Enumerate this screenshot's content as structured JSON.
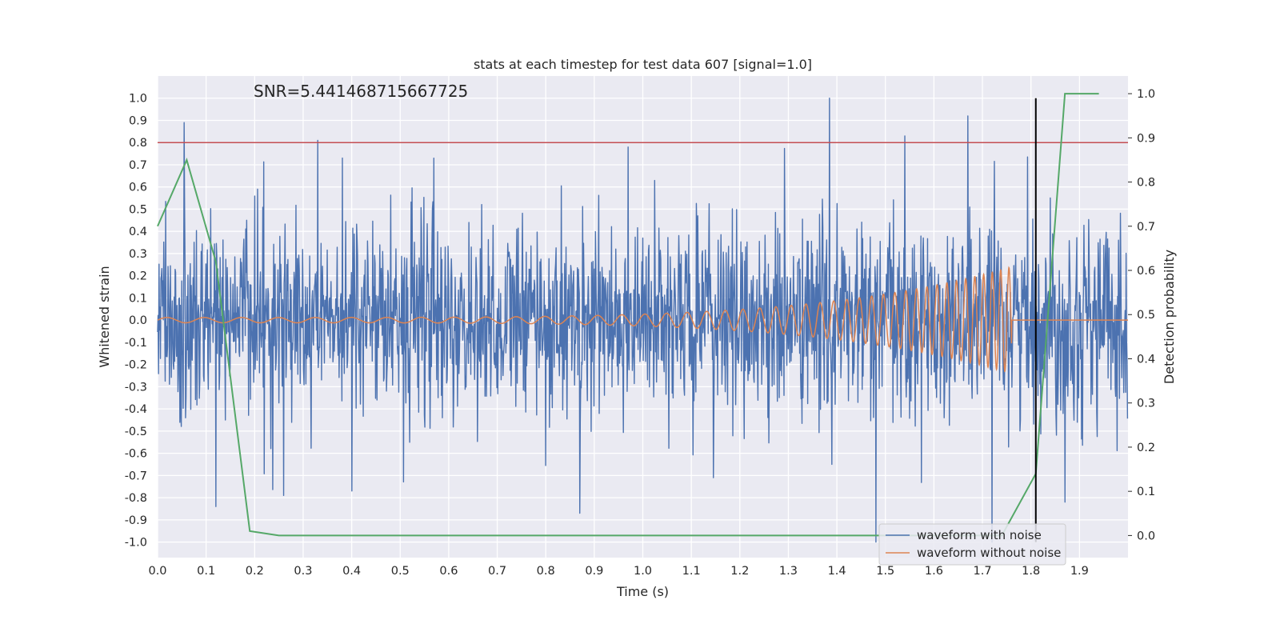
{
  "chart_data": {
    "type": "line",
    "title": "stats at each timestep for test data 607 [signal=1.0]",
    "xlabel": "Time (s)",
    "ylabel": "Whitened strain",
    "ylabel_right": "Detection probability",
    "annotation": "SNR=5.441468715667725",
    "xlim": [
      0.0,
      2.0
    ],
    "ylim": [
      -1.07,
      1.1
    ],
    "ylim_right": [
      -0.05,
      1.04
    ],
    "x_ticks": [
      "0.0",
      "0.1",
      "0.2",
      "0.3",
      "0.4",
      "0.5",
      "0.6",
      "0.7",
      "0.8",
      "0.9",
      "1.0",
      "1.1",
      "1.2",
      "1.3",
      "1.4",
      "1.5",
      "1.6",
      "1.7",
      "1.8",
      "1.9"
    ],
    "y_ticks": [
      "1.0",
      "0.9",
      "0.8",
      "0.7",
      "0.6",
      "0.5",
      "0.4",
      "0.3",
      "0.2",
      "0.1",
      "0.0",
      "-0.1",
      "-0.2",
      "-0.3",
      "-0.4",
      "-0.5",
      "-0.6",
      "-0.7",
      "-0.8",
      "-0.9",
      "-1.0"
    ],
    "y_ticks_right": [
      "1.0",
      "0.9",
      "0.8",
      "0.7",
      "0.6",
      "0.5",
      "0.4",
      "0.3",
      "0.2",
      "0.1",
      "0.0"
    ],
    "grid": true,
    "legend_placement": "lower-right",
    "threshold": {
      "y": 0.8,
      "color": "#c44e52"
    },
    "marker_line": {
      "x": 1.81,
      "color": "#000000"
    },
    "series": [
      {
        "name": "waveform with noise",
        "color": "#4c72b0",
        "axis": "left",
        "generated": true,
        "samples": 2048,
        "seed": 607,
        "amplitude": 0.22,
        "peaks": [
          {
            "x": 0.055,
            "y": 0.89
          },
          {
            "x": 0.12,
            "y": -0.84
          },
          {
            "x": 0.33,
            "y": 0.81
          },
          {
            "x": 0.26,
            "y": -0.79
          },
          {
            "x": 0.87,
            "y": -0.87
          },
          {
            "x": 1.385,
            "y": 1.0
          },
          {
            "x": 1.48,
            "y": -1.0
          },
          {
            "x": 1.54,
            "y": 0.83
          },
          {
            "x": 1.67,
            "y": 0.92
          },
          {
            "x": 1.72,
            "y": -1.0
          },
          {
            "x": 1.87,
            "y": -0.82
          },
          {
            "x": 0.97,
            "y": 0.78
          },
          {
            "x": 0.4,
            "y": -0.77
          },
          {
            "x": 1.39,
            "y": -0.65
          }
        ]
      },
      {
        "name": "waveform without noise",
        "color": "#dd8452",
        "axis": "left",
        "generated": true,
        "chirp": {
          "t_start": 0.0,
          "t_merge": 1.76,
          "f_start": 13,
          "f_end": 60,
          "amp_start": 0.012,
          "amp_end": 0.24
        }
      },
      {
        "name": "",
        "color": "#55a868",
        "axis": "right",
        "x": [
          0.0,
          0.06,
          0.12,
          0.19,
          0.25,
          1.48,
          1.74,
          1.81,
          1.87,
          1.94
        ],
        "y": [
          0.7,
          0.85,
          0.62,
          0.01,
          0.0,
          0.0,
          0.0,
          0.14,
          1.0,
          1.0
        ]
      }
    ]
  }
}
